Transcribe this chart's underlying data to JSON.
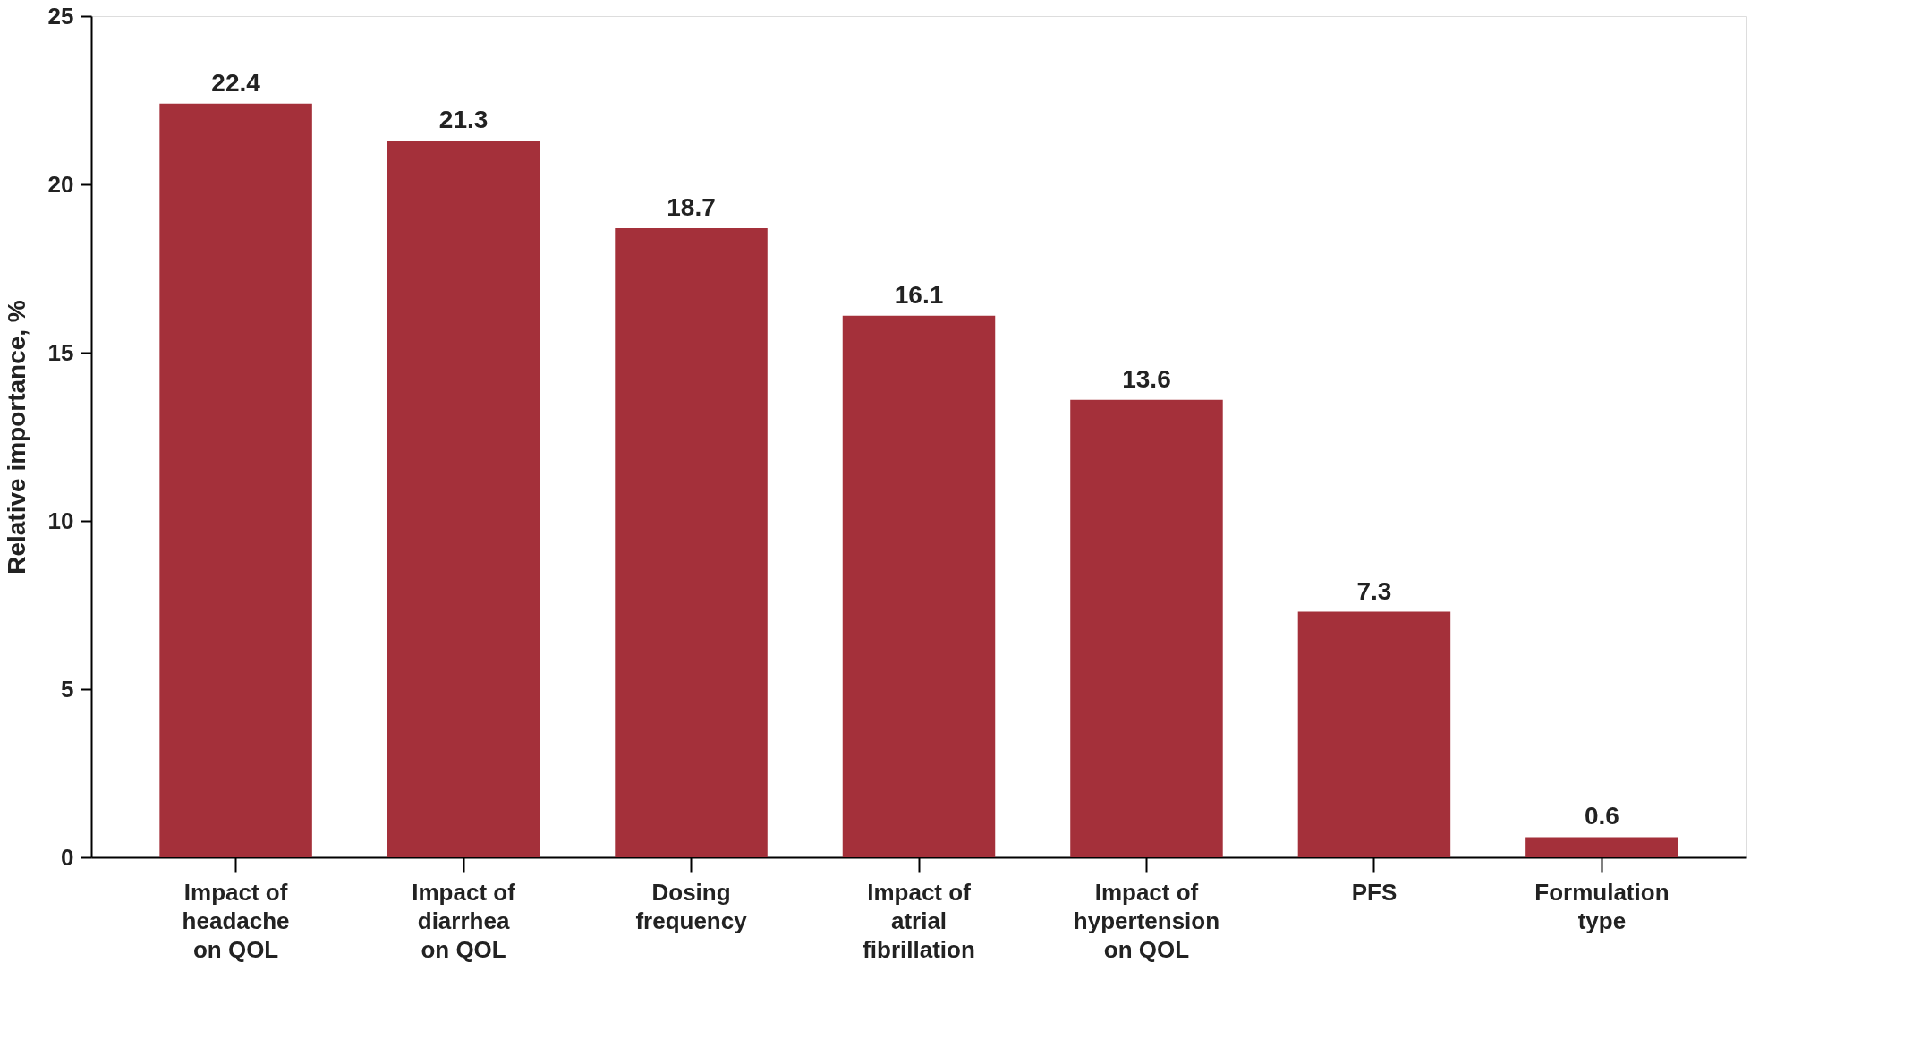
{
  "chart_data": {
    "type": "bar",
    "ylabel": "Relative importance, %",
    "categories": [
      "Impact of headache on QOL",
      "Impact of diarrhea on QOL",
      "Dosing frequency",
      "Impact of atrial fibrillation",
      "Impact of hypertension on QOL",
      "PFS",
      "Formulation type"
    ],
    "values": [
      22.4,
      21.3,
      18.7,
      16.1,
      13.6,
      7.3,
      0.6
    ],
    "color": "#a4303a",
    "ylim": [
      0,
      25
    ],
    "yticks": [
      0,
      5,
      10,
      15,
      20,
      25
    ],
    "grid": false,
    "data_labels": true
  }
}
